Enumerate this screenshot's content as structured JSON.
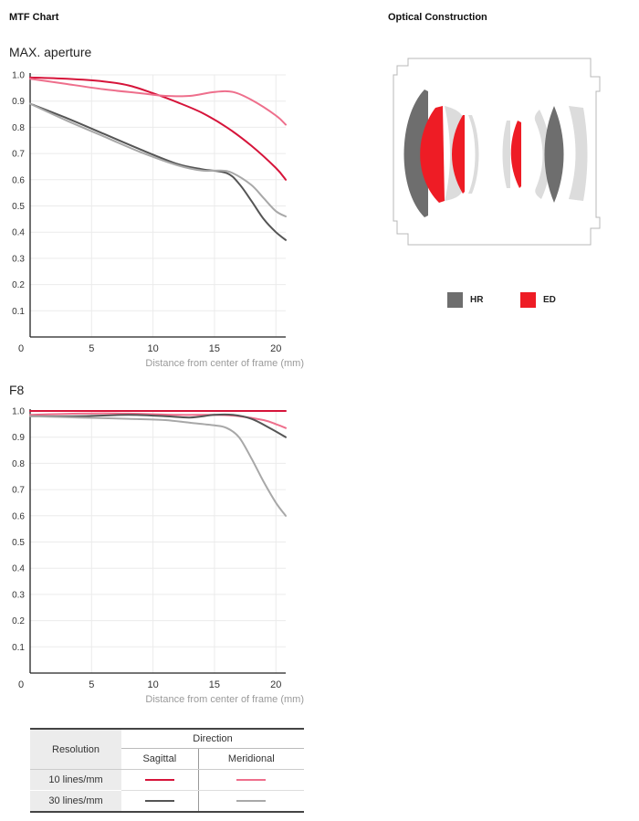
{
  "header": {
    "mtf_title": "MTF Chart",
    "optical_title": "Optical Construction"
  },
  "colors": {
    "sagittal_10": "#d6143a",
    "meridional_10": "#ee6f8c",
    "sagittal_30": "#555555",
    "meridional_30": "#a8a8a8",
    "hr": "#6e6e6e",
    "ed": "#ee1c25",
    "plain_element": "#dcdcdc"
  },
  "optical": {
    "legend": [
      {
        "label": "HR",
        "color": "#6e6e6e"
      },
      {
        "label": "ED",
        "color": "#ee1c25"
      }
    ]
  },
  "table": {
    "resolution": "Resolution",
    "direction": "Direction",
    "sagittal": "Sagittal",
    "meridional": "Meridional",
    "rows": [
      "10 lines/mm",
      "30 lines/mm"
    ]
  },
  "chart_data": [
    {
      "type": "line",
      "title": "MAX. aperture",
      "xlabel": "Distance from center of frame (mm)",
      "ylabel": "",
      "xlim": [
        0,
        20.8
      ],
      "ylim": [
        0,
        1.0
      ],
      "x_ticks": [
        "0",
        "5",
        "10",
        "15",
        "20"
      ],
      "y_ticks": [
        "1.0",
        "0.9",
        "0.8",
        "0.7",
        "0.6",
        "0.5",
        "0.4",
        "0.3",
        "0.2",
        "0.1"
      ],
      "grid": true,
      "series": [
        {
          "key": "sagittal_10",
          "x": [
            0,
            3,
            6,
            8,
            10,
            12,
            14,
            16,
            18,
            20,
            20.8
          ],
          "values": [
            0.99,
            0.985,
            0.975,
            0.96,
            0.93,
            0.895,
            0.855,
            0.8,
            0.73,
            0.645,
            0.6
          ]
        },
        {
          "key": "meridional_10",
          "x": [
            0,
            3,
            6,
            9,
            11,
            13,
            15,
            16.5,
            18,
            20,
            20.8
          ],
          "values": [
            0.985,
            0.965,
            0.945,
            0.93,
            0.92,
            0.92,
            0.935,
            0.935,
            0.905,
            0.845,
            0.81
          ]
        },
        {
          "key": "sagittal_30",
          "x": [
            0,
            3,
            6,
            9,
            12,
            14,
            16,
            17,
            18,
            19,
            20,
            20.8
          ],
          "values": [
            0.89,
            0.835,
            0.775,
            0.715,
            0.66,
            0.64,
            0.625,
            0.585,
            0.52,
            0.45,
            0.4,
            0.37
          ]
        },
        {
          "key": "meridional_30",
          "x": [
            0,
            3,
            6,
            9,
            12,
            14,
            15.5,
            16.5,
            18,
            19,
            20,
            20.8
          ],
          "values": [
            0.89,
            0.825,
            0.765,
            0.705,
            0.655,
            0.635,
            0.635,
            0.625,
            0.58,
            0.53,
            0.48,
            0.46
          ]
        }
      ]
    },
    {
      "type": "line",
      "title": "F8",
      "xlabel": "Distance from center of frame (mm)",
      "ylabel": "",
      "xlim": [
        0,
        20.8
      ],
      "ylim": [
        0,
        1.0
      ],
      "x_ticks": [
        "0",
        "5",
        "10",
        "15",
        "20"
      ],
      "y_ticks": [
        "1.0",
        "0.9",
        "0.8",
        "0.7",
        "0.6",
        "0.5",
        "0.4",
        "0.3",
        "0.2",
        "0.1"
      ],
      "grid": true,
      "series": [
        {
          "key": "sagittal_10",
          "x": [
            0,
            5,
            10,
            15,
            20,
            20.8
          ],
          "values": [
            1.0,
            1.0,
            1.0,
            1.0,
            1.0,
            1.0
          ]
        },
        {
          "key": "meridional_10",
          "x": [
            0,
            4,
            8,
            12,
            15,
            17,
            19,
            20,
            20.8
          ],
          "values": [
            0.985,
            0.99,
            0.99,
            0.985,
            0.985,
            0.98,
            0.965,
            0.95,
            0.935
          ]
        },
        {
          "key": "sagittal_30",
          "x": [
            0,
            4,
            8,
            11,
            13,
            15,
            16.5,
            18,
            19.5,
            20.8
          ],
          "values": [
            0.98,
            0.98,
            0.985,
            0.98,
            0.975,
            0.985,
            0.985,
            0.97,
            0.935,
            0.9
          ]
        },
        {
          "key": "meridional_30",
          "x": [
            0,
            4,
            8,
            11,
            13,
            15,
            16,
            17,
            18,
            19,
            20,
            20.8
          ],
          "values": [
            0.98,
            0.975,
            0.97,
            0.965,
            0.955,
            0.945,
            0.935,
            0.9,
            0.82,
            0.73,
            0.65,
            0.6
          ]
        }
      ]
    }
  ]
}
